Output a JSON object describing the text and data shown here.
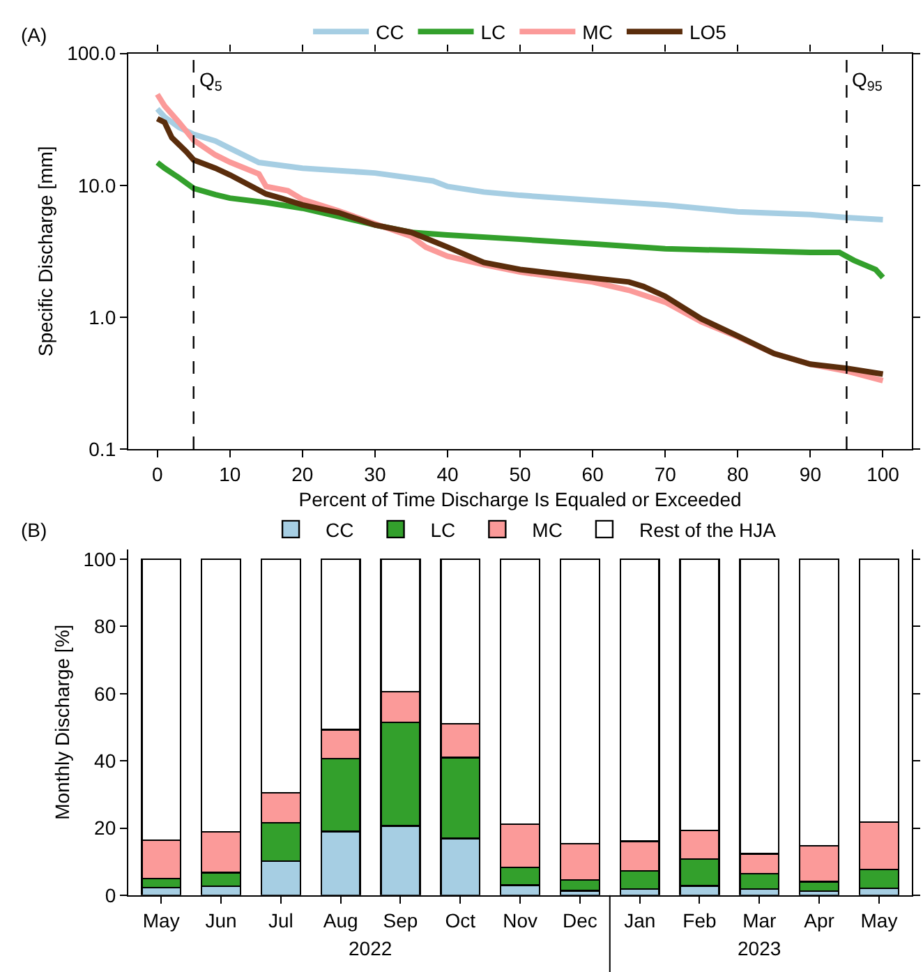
{
  "chart_data": [
    {
      "type": "line",
      "xlabel": "Percent of Time Discharge Is Equaled or Exceeded",
      "ylabel": "Specific Discharge [mm]",
      "log": "y",
      "legend": "top",
      "xlim": [
        -4,
        104
      ],
      "xticks": [
        0,
        10,
        20,
        30,
        40,
        50,
        60,
        70,
        80,
        90,
        100
      ],
      "ylim": [
        0.1,
        100
      ],
      "yticks": [
        0.1,
        {
          "value": 1,
          "label": "1.0"
        },
        {
          "value": 10,
          "label": "10.0"
        },
        {
          "value": 100,
          "label": "100.0"
        }
      ],
      "annotations": [
        "(A)"
      ],
      "ref_lines": [
        {
          "axis": "x",
          "value": 5,
          "label": "Q$_{5}$",
          "line_style": "dashed",
          "color": "#000000"
        },
        {
          "axis": "x",
          "value": 95,
          "label": "Q$_{95}$",
          "line_style": "dashed",
          "color": "#000000"
        }
      ],
      "series": [
        {
          "name": "CC",
          "color": "#a6cee3",
          "x": [
            0,
            1,
            3,
            5,
            8,
            10,
            14,
            20,
            30,
            38,
            40,
            45,
            50,
            60,
            70,
            80,
            90,
            95,
            100
          ],
          "values": [
            38,
            33,
            27.5,
            24.4,
            21.7,
            19.1,
            14.9,
            13.5,
            12.4,
            10.8,
            9.8,
            8.9,
            8.4,
            7.7,
            7.1,
            6.3,
            6.0,
            5.7,
            5.5
          ]
        },
        {
          "name": "LC",
          "color": "#33a02c",
          "x": [
            0,
            1,
            3,
            5,
            8,
            10,
            15,
            20,
            25,
            30,
            35,
            40,
            50,
            60,
            70,
            80,
            90,
            94,
            96,
            99,
            100
          ],
          "values": [
            14.9,
            13.5,
            11.4,
            9.5,
            8.5,
            8.0,
            7.4,
            6.7,
            5.8,
            5.0,
            4.4,
            4.2,
            3.9,
            3.6,
            3.3,
            3.2,
            3.1,
            3.1,
            2.7,
            2.3,
            2.0
          ]
        },
        {
          "name": "MC",
          "color": "#fb9a99",
          "x": [
            0,
            1,
            3,
            5,
            8,
            10,
            14,
            15,
            18,
            20,
            25,
            30,
            35,
            37,
            40,
            45,
            50,
            60,
            65,
            70,
            75,
            80,
            85,
            90,
            95,
            100
          ],
          "values": [
            49,
            40,
            30,
            22,
            17,
            15,
            12.2,
            9.8,
            9.1,
            7.8,
            6.4,
            5.1,
            4.1,
            3.4,
            2.9,
            2.5,
            2.2,
            1.85,
            1.6,
            1.3,
            0.92,
            0.71,
            0.53,
            0.44,
            0.39,
            0.33
          ]
        },
        {
          "name": "LO5",
          "color": "#5a2d0c",
          "x": [
            0,
            1,
            2,
            4,
            5,
            8,
            10,
            12,
            15,
            17,
            20,
            25,
            30,
            35,
            40,
            45,
            50,
            60,
            65,
            67,
            70,
            75,
            80,
            85,
            90,
            95,
            100
          ],
          "values": [
            32,
            30,
            23,
            18,
            15.6,
            13.5,
            12.0,
            10.5,
            8.6,
            8.0,
            7.1,
            6.2,
            5.0,
            4.4,
            3.4,
            2.6,
            2.3,
            1.98,
            1.85,
            1.71,
            1.44,
            0.97,
            0.72,
            0.53,
            0.44,
            0.41,
            0.37
          ]
        }
      ]
    },
    {
      "type": "bar",
      "stacked": true,
      "ylabel": "Monthly Discharge [%]",
      "legend": "top",
      "categories": [
        "May",
        "Jun",
        "Jul",
        "Aug",
        "Sep",
        "Oct",
        "Nov",
        "Dec",
        "Jan",
        "Feb",
        "Mar",
        "Apr",
        "May"
      ],
      "ylim": [
        0,
        103
      ],
      "yticks": [
        0,
        20,
        40,
        60,
        80,
        100
      ],
      "annotations": [
        "(B)",
        "2022",
        "2023"
      ],
      "series": [
        {
          "name": "CC",
          "color": "#a6cee3",
          "values": [
            2.2,
            2.7,
            10.2,
            19.0,
            20.6,
            16.9,
            3.0,
            1.3,
            1.9,
            2.8,
            1.8,
            1.2,
            2.1
          ]
        },
        {
          "name": "LC",
          "color": "#33a02c",
          "values": [
            2.7,
            4.0,
            11.3,
            21.7,
            30.8,
            24.1,
            5.3,
            3.3,
            5.4,
            8.0,
            4.6,
            2.8,
            5.5
          ]
        },
        {
          "name": "MC",
          "color": "#fb9a99",
          "values": [
            11.5,
            12.1,
            9.0,
            8.6,
            9.2,
            10.0,
            12.9,
            10.7,
            8.8,
            8.5,
            5.9,
            10.7,
            14.2
          ]
        },
        {
          "name": "Rest of the HJA",
          "color": "#ffffff",
          "values": [
            83.6,
            81.2,
            69.5,
            50.7,
            39.4,
            49.0,
            78.8,
            84.7,
            83.9,
            80.7,
            87.7,
            85.3,
            78.2
          ]
        }
      ]
    }
  ]
}
